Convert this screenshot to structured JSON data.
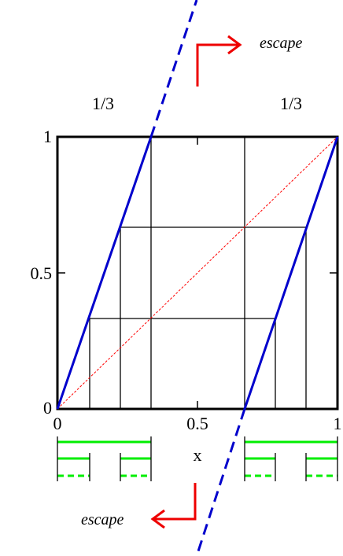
{
  "axes": {
    "xlabel": "x",
    "x_ticks": [
      {
        "value": 0,
        "label": "0"
      },
      {
        "value": 0.5,
        "label": "0.5"
      },
      {
        "value": 1,
        "label": "1"
      }
    ],
    "y_ticks": [
      {
        "value": 0,
        "label": "0"
      },
      {
        "value": 0.5,
        "label": "0.5"
      },
      {
        "value": 1,
        "label": "1"
      }
    ],
    "xlim": [
      0,
      1
    ],
    "ylim": [
      0,
      1
    ]
  },
  "labels": {
    "interval_left": "1/3",
    "interval_right": "1/3",
    "escape_top": "escape",
    "escape_bottom": "escape"
  },
  "colors": {
    "map": "#0000cc",
    "diagonal": "#ff0000",
    "arrow": "#ee0000",
    "cantor": "#00ee00",
    "frame": "#000000"
  }
}
